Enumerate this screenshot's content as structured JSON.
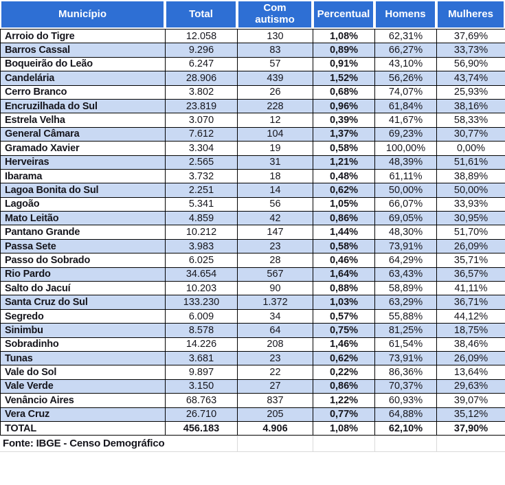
{
  "colors": {
    "header_bg": "#2e6fd4",
    "header_text": "#ffffff",
    "stripe_row_bg": "#c9d9f3",
    "body_text": "#15151c",
    "grid_border": "#000000"
  },
  "chart_data": {
    "type": "table",
    "title": "",
    "columns": [
      "Município",
      "Total",
      "Com autismo",
      "Percentual",
      "Homens",
      "Mulheres"
    ],
    "column_keys": [
      "municipio",
      "total",
      "com_autismo",
      "percentual",
      "homens",
      "mulheres"
    ],
    "rows": [
      [
        "Arroio do Tigre",
        "12.058",
        "130",
        "1,08%",
        "62,31%",
        "37,69%"
      ],
      [
        "Barros Cassal",
        "9.296",
        "83",
        "0,89%",
        "66,27%",
        "33,73%"
      ],
      [
        "Boqueirão do Leão",
        "6.247",
        "57",
        "0,91%",
        "43,10%",
        "56,90%"
      ],
      [
        "Candelária",
        "28.906",
        "439",
        "1,52%",
        "56,26%",
        "43,74%"
      ],
      [
        "Cerro Branco",
        "3.802",
        "26",
        "0,68%",
        "74,07%",
        "25,93%"
      ],
      [
        "Encruzilhada do Sul",
        "23.819",
        "228",
        "0,96%",
        "61,84%",
        "38,16%"
      ],
      [
        "Estrela Velha",
        "3.070",
        "12",
        "0,39%",
        "41,67%",
        "58,33%"
      ],
      [
        "General Câmara",
        "7.612",
        "104",
        "1,37%",
        "69,23%",
        "30,77%"
      ],
      [
        "Gramado Xavier",
        "3.304",
        "19",
        "0,58%",
        "100,00%",
        "0,00%"
      ],
      [
        "Herveiras",
        "2.565",
        "31",
        "1,21%",
        "48,39%",
        "51,61%"
      ],
      [
        "Ibarama",
        "3.732",
        "18",
        "0,48%",
        "61,11%",
        "38,89%"
      ],
      [
        "Lagoa Bonita do Sul",
        "2.251",
        "14",
        "0,62%",
        "50,00%",
        "50,00%"
      ],
      [
        "Lagoão",
        "5.341",
        "56",
        "1,05%",
        "66,07%",
        "33,93%"
      ],
      [
        "Mato Leitão",
        "4.859",
        "42",
        "0,86%",
        "69,05%",
        "30,95%"
      ],
      [
        "Pantano Grande",
        "10.212",
        "147",
        "1,44%",
        "48,30%",
        "51,70%"
      ],
      [
        "Passa Sete",
        "3.983",
        "23",
        "0,58%",
        "73,91%",
        "26,09%"
      ],
      [
        "Passo do Sobrado",
        "6.025",
        "28",
        "0,46%",
        "64,29%",
        "35,71%"
      ],
      [
        "Rio Pardo",
        "34.654",
        "567",
        "1,64%",
        "63,43%",
        "36,57%"
      ],
      [
        "Salto do Jacuí",
        "10.203",
        "90",
        "0,88%",
        "58,89%",
        "41,11%"
      ],
      [
        "Santa Cruz do Sul",
        "133.230",
        "1.372",
        "1,03%",
        "63,29%",
        "36,71%"
      ],
      [
        "Segredo",
        "6.009",
        "34",
        "0,57%",
        "55,88%",
        "44,12%"
      ],
      [
        "Sinimbu",
        "8.578",
        "64",
        "0,75%",
        "81,25%",
        "18,75%"
      ],
      [
        "Sobradinho",
        "14.226",
        "208",
        "1,46%",
        "61,54%",
        "38,46%"
      ],
      [
        "Tunas",
        "3.681",
        "23",
        "0,62%",
        "73,91%",
        "26,09%"
      ],
      [
        "Vale do Sol",
        "9.897",
        "22",
        "0,22%",
        "86,36%",
        "13,64%"
      ],
      [
        "Vale Verde",
        "3.150",
        "27",
        "0,86%",
        "70,37%",
        "29,63%"
      ],
      [
        "Venâncio Aires",
        "68.763",
        "837",
        "1,22%",
        "60,93%",
        "39,07%"
      ],
      [
        "Vera Cruz",
        "26.710",
        "205",
        "0,77%",
        "64,88%",
        "35,12%"
      ]
    ],
    "total_row": [
      "TOTAL",
      "456.183",
      "4.906",
      "1,08%",
      "62,10%",
      "37,90%"
    ],
    "source_note": "Fonte: IBGE - Censo Demográfico",
    "layout_hints": {
      "stripe_pattern": "white / light-blue alternating, starting white",
      "bold_columns": [
        "municipio",
        "percentual"
      ],
      "header_two_line_column": "Com autismo"
    }
  }
}
